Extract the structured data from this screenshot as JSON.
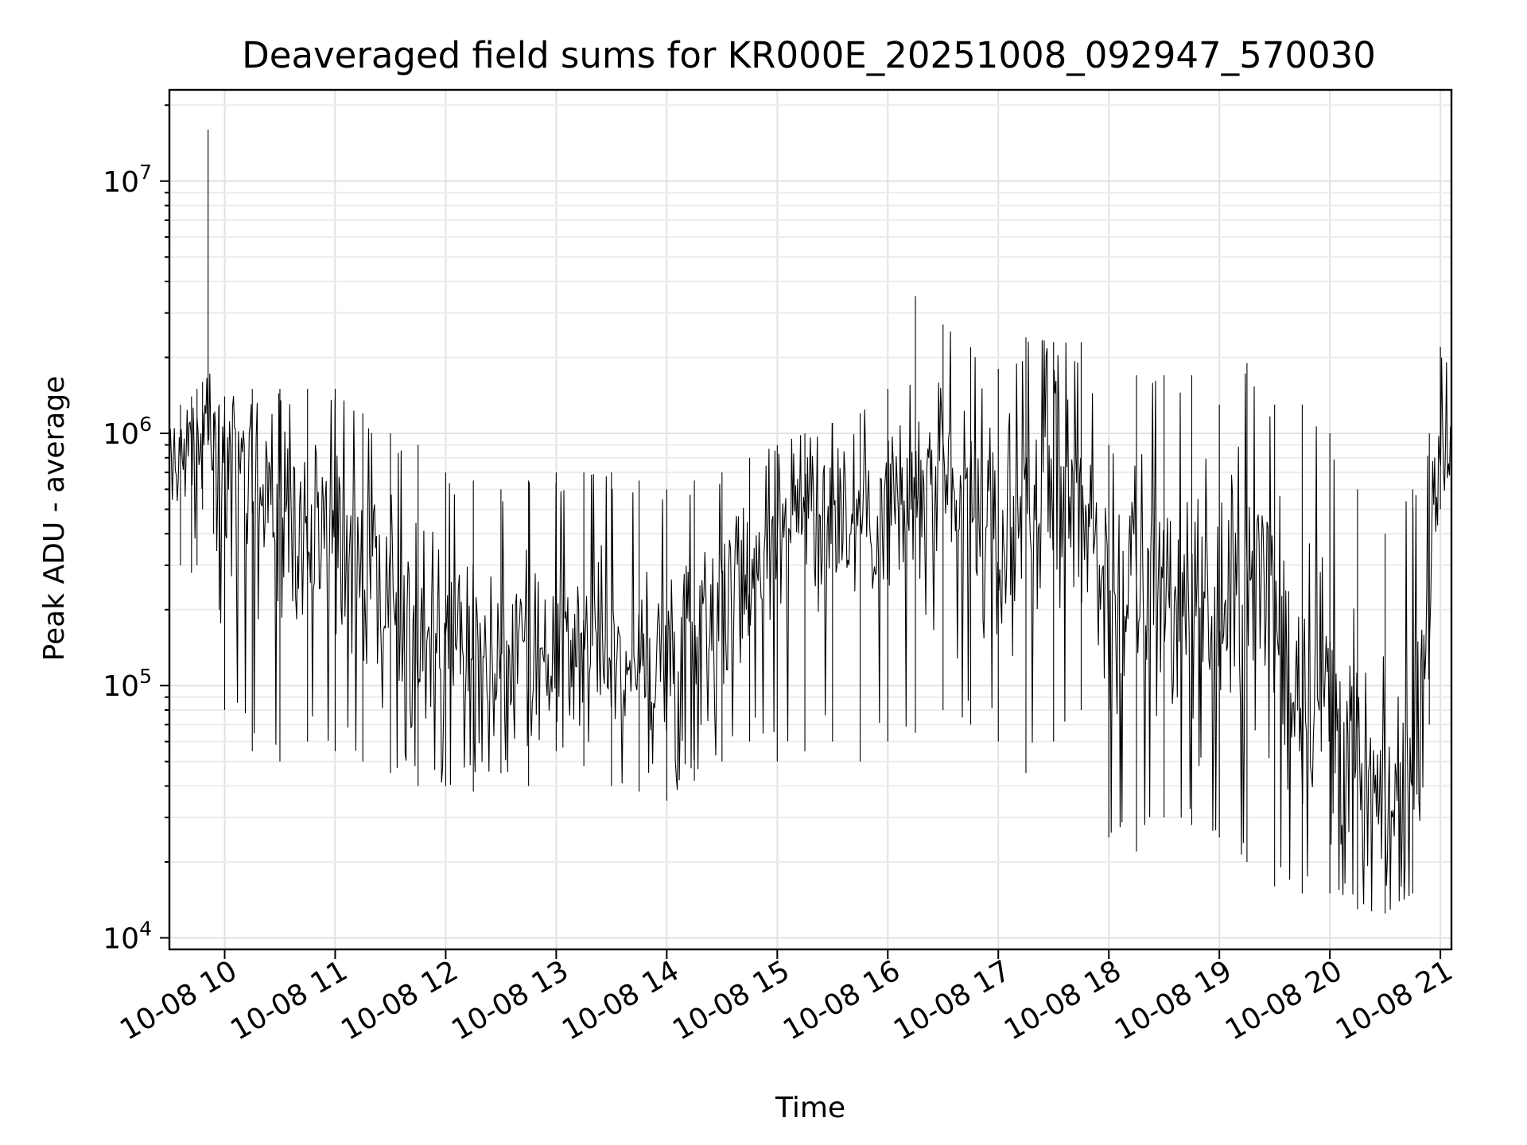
{
  "chart_data": {
    "type": "line",
    "title": "Deaveraged field sums for KR000E_20251008_092947_570030",
    "xlabel": "Time",
    "ylabel": "Peak ADU - average",
    "x_axis": {
      "unit": "hours (2025-10-08, clock time)",
      "range": [
        9.5,
        21.1
      ],
      "ticks": [
        10,
        11,
        12,
        13,
        14,
        15,
        16,
        17,
        18,
        19,
        20,
        21
      ],
      "tick_labels": [
        "10-08 10",
        "10-08 11",
        "10-08 12",
        "10-08 13",
        "10-08 14",
        "10-08 15",
        "10-08 16",
        "10-08 17",
        "10-08 18",
        "10-08 19",
        "10-08 20",
        "10-08 21"
      ]
    },
    "y_axis": {
      "scale": "log",
      "range": [
        9000,
        23000000
      ],
      "major_ticks": [
        10000,
        100000,
        1000000,
        10000000
      ],
      "tick_labels": [
        {
          "base": "10",
          "exp": "4"
        },
        {
          "base": "10",
          "exp": "5"
        },
        {
          "base": "10",
          "exp": "6"
        },
        {
          "base": "10",
          "exp": "7"
        }
      ]
    },
    "grid": true,
    "legend": "none",
    "series_color": "#000000",
    "series": [
      {
        "x": [
          9.5,
          9.6,
          9.7,
          9.75,
          9.8,
          9.85,
          9.9,
          9.95,
          10.0,
          10.25,
          10.5,
          10.75,
          11.0,
          11.25,
          11.5,
          11.75,
          12.0,
          12.25,
          12.5,
          12.75,
          13.0,
          13.25,
          13.5,
          13.75,
          14.0,
          14.25,
          14.5,
          14.75,
          15.0,
          15.25,
          15.5,
          15.75,
          16.0,
          16.25,
          16.5,
          16.75,
          17.0,
          17.25,
          17.5,
          17.75,
          18.0,
          18.25,
          18.5,
          18.75,
          19.0,
          19.25,
          19.5,
          19.75,
          20.0,
          20.25,
          20.5,
          20.75,
          20.9,
          21.0,
          21.1
        ],
        "high": [
          1200000,
          1300000,
          1400000,
          1500000,
          1600000,
          16000000,
          1200000,
          1300000,
          1400000,
          1500000,
          1500000,
          1500000,
          1500000,
          1200000,
          1000000,
          900000,
          700000,
          650000,
          600000,
          650000,
          700000,
          700000,
          700000,
          650000,
          600000,
          650000,
          700000,
          800000,
          900000,
          1000000,
          1100000,
          1200000,
          1500000,
          3500000,
          2700000,
          2200000,
          1800000,
          2400000,
          2300000,
          2300000,
          900000,
          1700000,
          1700000,
          1700000,
          1300000,
          1900000,
          1300000,
          1300000,
          1000000,
          600000,
          400000,
          600000,
          1000000,
          2200000,
          2200000
        ],
        "low": [
          400000,
          300000,
          280000,
          300000,
          500000,
          900000,
          400000,
          200000,
          80000,
          55000,
          50000,
          60000,
          55000,
          50000,
          45000,
          40000,
          40000,
          38000,
          45000,
          40000,
          55000,
          48000,
          40000,
          38000,
          35000,
          42000,
          50000,
          60000,
          50000,
          55000,
          60000,
          50000,
          60000,
          65000,
          80000,
          70000,
          60000,
          45000,
          60000,
          80000,
          25000,
          22000,
          30000,
          28000,
          25000,
          20000,
          16000,
          15000,
          15000,
          13000,
          12500,
          15000,
          70000,
          500000,
          400000
        ],
        "median": [
          700000,
          800000,
          900000,
          950000,
          1000000,
          1300000,
          900000,
          700000,
          600000,
          550000,
          500000,
          450000,
          420000,
          300000,
          220000,
          160000,
          130000,
          120000,
          115000,
          110000,
          120000,
          130000,
          130000,
          125000,
          130000,
          170000,
          220000,
          300000,
          420000,
          500000,
          520000,
          500000,
          500000,
          550000,
          500000,
          450000,
          380000,
          550000,
          650000,
          600000,
          200000,
          250000,
          220000,
          200000,
          180000,
          250000,
          180000,
          130000,
          90000,
          45000,
          30000,
          35000,
          250000,
          800000,
          1000000
        ]
      }
    ]
  }
}
